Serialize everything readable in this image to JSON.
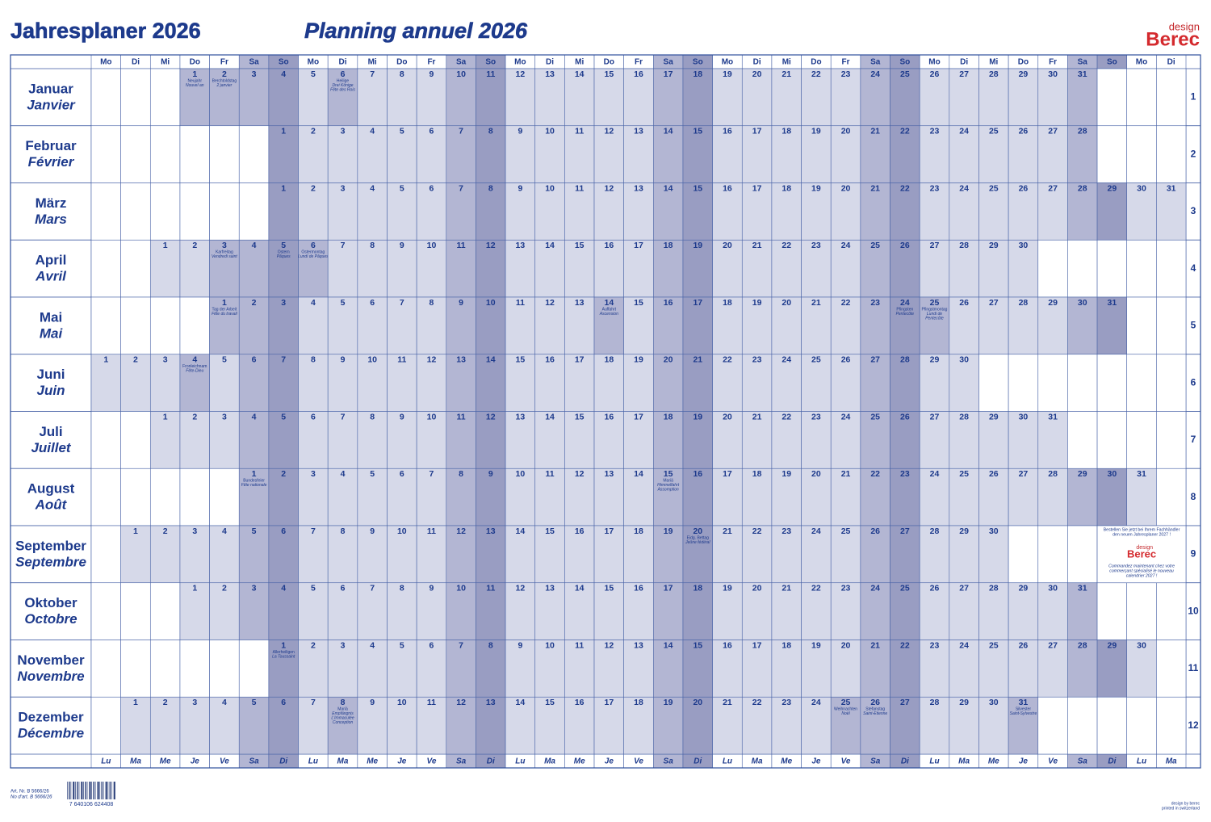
{
  "header": {
    "title_de": "Jahresplaner 2026",
    "title_fr": "Planning annuel 2026",
    "logo_small": "design",
    "logo": "Berec"
  },
  "weekdays_de": [
    "Mo",
    "Di",
    "Mi",
    "Do",
    "Fr",
    "Sa",
    "So",
    "Mo",
    "Di",
    "Mi",
    "Do",
    "Fr",
    "Sa",
    "So",
    "Mo",
    "Di",
    "Mi",
    "Do",
    "Fr",
    "Sa",
    "So",
    "Mo",
    "Di",
    "Mi",
    "Do",
    "Fr",
    "Sa",
    "So",
    "Mo",
    "Di",
    "Mi",
    "Do",
    "Fr",
    "Sa",
    "So",
    "Mo",
    "Di"
  ],
  "weekdays_fr": [
    "Lu",
    "Ma",
    "Me",
    "Je",
    "Ve",
    "Sa",
    "Di",
    "Lu",
    "Ma",
    "Me",
    "Je",
    "Ve",
    "Sa",
    "Di",
    "Lu",
    "Ma",
    "Me",
    "Je",
    "Ve",
    "Sa",
    "Di",
    "Lu",
    "Ma",
    "Me",
    "Je",
    "Ve",
    "Sa",
    "Di",
    "Lu",
    "Ma",
    "Me",
    "Je",
    "Ve",
    "Sa",
    "Di",
    "Lu",
    "Ma"
  ],
  "months": [
    {
      "de": "Januar",
      "fr": "Janvier",
      "number": 1,
      "days": [
        null,
        null,
        null,
        1,
        2,
        3,
        4,
        5,
        6,
        7,
        8,
        9,
        10,
        11,
        12,
        13,
        14,
        15,
        16,
        17,
        18,
        19,
        20,
        21,
        22,
        23,
        24,
        25,
        26,
        27,
        28,
        29,
        30,
        31,
        null,
        null,
        null
      ],
      "holidays": [
        {
          "day": 1,
          "lines": [
            "Neujahr",
            "Nouvel an"
          ]
        },
        {
          "day": 2,
          "lines": [
            "Berchtoldstag",
            "2 janvier"
          ]
        },
        {
          "day": 6,
          "lines": [
            "Heilige",
            "Drei Könige",
            "Fête des Rois"
          ]
        }
      ]
    },
    {
      "de": "Februar",
      "fr": "Février",
      "number": 2,
      "days": [
        null,
        null,
        null,
        null,
        null,
        null,
        1,
        2,
        3,
        4,
        5,
        6,
        7,
        8,
        9,
        10,
        11,
        12,
        13,
        14,
        15,
        16,
        17,
        18,
        19,
        20,
        21,
        22,
        23,
        24,
        25,
        26,
        27,
        28,
        null,
        null,
        null
      ],
      "holidays": []
    },
    {
      "de": "März",
      "fr": "Mars",
      "number": 3,
      "days": [
        null,
        null,
        null,
        null,
        null,
        null,
        1,
        2,
        3,
        4,
        5,
        6,
        7,
        8,
        9,
        10,
        11,
        12,
        13,
        14,
        15,
        16,
        17,
        18,
        19,
        20,
        21,
        22,
        23,
        24,
        25,
        26,
        27,
        28,
        29,
        30,
        31
      ],
      "holidays": []
    },
    {
      "de": "April",
      "fr": "Avril",
      "number": 4,
      "days": [
        null,
        null,
        1,
        2,
        3,
        4,
        5,
        6,
        7,
        8,
        9,
        10,
        11,
        12,
        13,
        14,
        15,
        16,
        17,
        18,
        19,
        20,
        21,
        22,
        23,
        24,
        25,
        26,
        27,
        28,
        29,
        30,
        null,
        null,
        null,
        null,
        null
      ],
      "holidays": [
        {
          "day": 3,
          "lines": [
            "Karfreitag",
            "Vendredi saint"
          ]
        },
        {
          "day": 5,
          "lines": [
            "Ostern",
            "Pâques"
          ]
        },
        {
          "day": 6,
          "lines": [
            "Ostermontag",
            "Lundi de Pâques"
          ]
        }
      ]
    },
    {
      "de": "Mai",
      "fr": "Mai",
      "number": 5,
      "days": [
        null,
        null,
        null,
        null,
        1,
        2,
        3,
        4,
        5,
        6,
        7,
        8,
        9,
        10,
        11,
        12,
        13,
        14,
        15,
        16,
        17,
        18,
        19,
        20,
        21,
        22,
        23,
        24,
        25,
        26,
        27,
        28,
        29,
        30,
        31,
        null,
        null
      ],
      "holidays": [
        {
          "day": 1,
          "lines": [
            "Tag der Arbeit",
            "Fête du travail"
          ]
        },
        {
          "day": 14,
          "lines": [
            "Auffahrt",
            "Ascension"
          ]
        },
        {
          "day": 24,
          "lines": [
            "Pfingsten",
            "Pentecôte"
          ]
        },
        {
          "day": 25,
          "lines": [
            "Pfingstmontag",
            "Lundi de",
            "Pentecôte"
          ]
        }
      ]
    },
    {
      "de": "Juni",
      "fr": "Juin",
      "number": 6,
      "days": [
        1,
        2,
        3,
        4,
        5,
        6,
        7,
        8,
        9,
        10,
        11,
        12,
        13,
        14,
        15,
        16,
        17,
        18,
        19,
        20,
        21,
        22,
        23,
        24,
        25,
        26,
        27,
        28,
        29,
        30,
        null,
        null,
        null,
        null,
        null,
        null,
        null
      ],
      "holidays": [
        {
          "day": 4,
          "lines": [
            "Fronleichnam",
            "Fête-Dieu"
          ]
        }
      ]
    },
    {
      "de": "Juli",
      "fr": "Juillet",
      "number": 7,
      "days": [
        null,
        null,
        1,
        2,
        3,
        4,
        5,
        6,
        7,
        8,
        9,
        10,
        11,
        12,
        13,
        14,
        15,
        16,
        17,
        18,
        19,
        20,
        21,
        22,
        23,
        24,
        25,
        26,
        27,
        28,
        29,
        30,
        31,
        null,
        null,
        null,
        null
      ],
      "holidays": []
    },
    {
      "de": "August",
      "fr": "Août",
      "number": 8,
      "days": [
        null,
        null,
        null,
        null,
        null,
        1,
        2,
        3,
        4,
        5,
        6,
        7,
        8,
        9,
        10,
        11,
        12,
        13,
        14,
        15,
        16,
        17,
        18,
        19,
        20,
        21,
        22,
        23,
        24,
        25,
        26,
        27,
        28,
        29,
        30,
        31,
        null
      ],
      "holidays": [
        {
          "day": 1,
          "lines": [
            "Bundesfeier",
            "Fête nationale"
          ]
        },
        {
          "day": 15,
          "lines": [
            "Mariä",
            "Himmelfahrt",
            "Assomption"
          ]
        }
      ]
    },
    {
      "de": "September",
      "fr": "Septembre",
      "number": 9,
      "days": [
        null,
        1,
        2,
        3,
        4,
        5,
        6,
        7,
        8,
        9,
        10,
        11,
        12,
        13,
        14,
        15,
        16,
        17,
        18,
        19,
        20,
        21,
        22,
        23,
        24,
        25,
        26,
        27,
        28,
        29,
        30,
        null,
        null,
        null,
        null,
        null,
        null
      ],
      "holidays": [
        {
          "day": 20,
          "lines": [
            "Eidg. Bettag",
            "Jeûne fédéral"
          ]
        }
      ]
    },
    {
      "de": "Oktober",
      "fr": "Octobre",
      "number": 10,
      "days": [
        null,
        null,
        null,
        1,
        2,
        3,
        4,
        5,
        6,
        7,
        8,
        9,
        10,
        11,
        12,
        13,
        14,
        15,
        16,
        17,
        18,
        19,
        20,
        21,
        22,
        23,
        24,
        25,
        26,
        27,
        28,
        29,
        30,
        31,
        null,
        null,
        null
      ],
      "holidays": []
    },
    {
      "de": "November",
      "fr": "Novembre",
      "number": 11,
      "days": [
        null,
        null,
        null,
        null,
        null,
        null,
        1,
        2,
        3,
        4,
        5,
        6,
        7,
        8,
        9,
        10,
        11,
        12,
        13,
        14,
        15,
        16,
        17,
        18,
        19,
        20,
        21,
        22,
        23,
        24,
        25,
        26,
        27,
        28,
        29,
        30,
        null
      ],
      "holidays": [
        {
          "day": 1,
          "lines": [
            "Allerheiligen",
            "La Toussaint"
          ]
        }
      ]
    },
    {
      "de": "Dezember",
      "fr": "Décembre",
      "number": 12,
      "days": [
        null,
        1,
        2,
        3,
        4,
        5,
        6,
        7,
        8,
        9,
        10,
        11,
        12,
        13,
        14,
        15,
        16,
        17,
        18,
        19,
        20,
        21,
        22,
        23,
        24,
        25,
        26,
        27,
        28,
        29,
        30,
        31,
        null,
        null,
        null,
        null,
        null
      ],
      "holidays": [
        {
          "day": 8,
          "lines": [
            "Mariä",
            "Empfängnis",
            "L'Immaculée",
            "Conception"
          ]
        },
        {
          "day": 25,
          "lines": [
            "Weihnachten",
            "Noël"
          ]
        },
        {
          "day": 26,
          "lines": [
            "Stefanstag",
            "Saint-Etienne"
          ]
        },
        {
          "day": 31,
          "lines": [
            "Silvester",
            "Saint-Sylvestre"
          ]
        }
      ]
    }
  ],
  "ad": {
    "de": [
      "Bestellen Sie jetzt bei Ihrem Fachhändler",
      "den neuen Jahresplaner 2027 !"
    ],
    "logo_small": "design",
    "logo": "Berec",
    "fr": [
      "Commandez maintenant chez votre",
      "commerçant spécialisé le nouveau",
      "calendrier 2027 !"
    ]
  },
  "footer": {
    "art_de": "Art. Nr. B 5666/26",
    "art_fr": "No d'art. B 5666/26",
    "barcode": "7 640106 624408",
    "credit": "design by berec",
    "printed": "printed in switzerland"
  }
}
